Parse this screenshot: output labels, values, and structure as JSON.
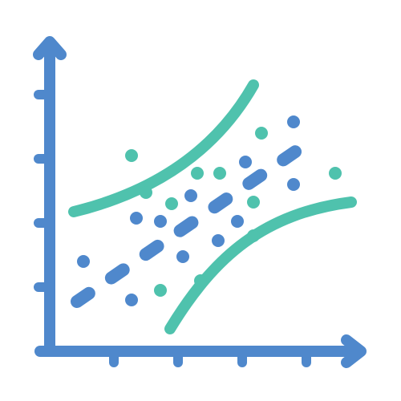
{
  "icon": {
    "name": "regression-scatter-plot-icon",
    "colors": {
      "axis": "#4f88cc",
      "bands": "#4fc2ad",
      "trend_line": "#4f88cc",
      "points_blue": "#4f88cc",
      "points_teal": "#4fc2ad"
    },
    "elements": [
      "y-axis",
      "x-axis",
      "dashed-trend-line",
      "upper-confidence-curve",
      "lower-confidence-curve",
      "scatter-points"
    ]
  }
}
